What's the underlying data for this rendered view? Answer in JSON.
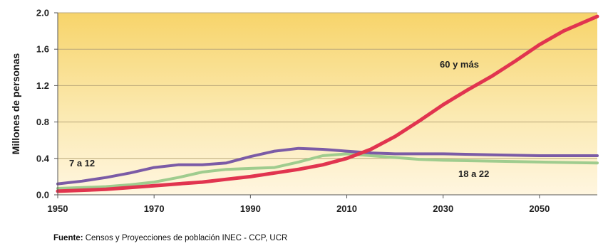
{
  "chart_data": {
    "type": "line",
    "ylabel": "Millones de personas",
    "ylim": [
      0,
      2.0
    ],
    "xlim": [
      1950,
      2062
    ],
    "x_ticks": [
      1950,
      1970,
      1990,
      2010,
      2030,
      2050
    ],
    "y_ticks": [
      0.0,
      0.4,
      0.8,
      1.2,
      1.6,
      2.0
    ],
    "y_tick_labels": [
      "0.0",
      "0.4",
      "0.8",
      "1.2",
      "1.6",
      "2.0"
    ],
    "grid": true,
    "background": "yellow-to-cream gradient",
    "series": [
      {
        "name": "7 a 12",
        "color": "#7b5ba6",
        "x": [
          1950,
          1955,
          1960,
          1965,
          1970,
          1975,
          1980,
          1985,
          1990,
          1995,
          2000,
          2005,
          2010,
          2015,
          2020,
          2025,
          2030,
          2040,
          2050,
          2062
        ],
        "y": [
          0.12,
          0.15,
          0.19,
          0.24,
          0.3,
          0.33,
          0.33,
          0.35,
          0.42,
          0.48,
          0.51,
          0.5,
          0.48,
          0.46,
          0.45,
          0.45,
          0.45,
          0.44,
          0.43,
          0.43
        ]
      },
      {
        "name": "18 a 22",
        "color": "#9fcc8e",
        "x": [
          1950,
          1955,
          1960,
          1965,
          1970,
          1975,
          1980,
          1985,
          1990,
          1995,
          2000,
          2005,
          2010,
          2015,
          2020,
          2025,
          2030,
          2040,
          2050,
          2062
        ],
        "y": [
          0.07,
          0.08,
          0.09,
          0.11,
          0.14,
          0.19,
          0.25,
          0.28,
          0.29,
          0.3,
          0.36,
          0.43,
          0.45,
          0.43,
          0.41,
          0.39,
          0.38,
          0.37,
          0.36,
          0.35
        ]
      },
      {
        "name": "60 y más",
        "color": "#e1344f",
        "x": [
          1950,
          1955,
          1960,
          1965,
          1970,
          1975,
          1980,
          1985,
          1990,
          1995,
          2000,
          2005,
          2010,
          2015,
          2020,
          2025,
          2030,
          2035,
          2040,
          2045,
          2050,
          2055,
          2062
        ],
        "y": [
          0.04,
          0.05,
          0.06,
          0.08,
          0.1,
          0.12,
          0.14,
          0.17,
          0.2,
          0.24,
          0.28,
          0.33,
          0.4,
          0.5,
          0.64,
          0.81,
          0.99,
          1.15,
          1.3,
          1.47,
          1.65,
          1.8,
          1.96
        ]
      }
    ]
  },
  "source": {
    "prefix": "Fuente:",
    "text": " Censos y Proyecciones de población INEC - CCP, UCR"
  }
}
